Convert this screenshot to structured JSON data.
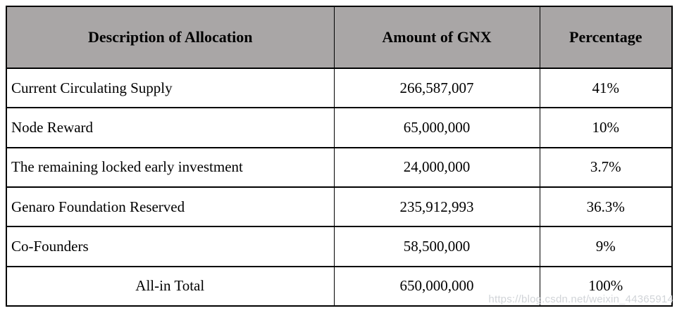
{
  "table": {
    "headers": [
      "Description of Allocation",
      "Amount of GNX",
      "Percentage"
    ],
    "rows": [
      {
        "description": "Current Circulating Supply",
        "amount": "266,587,007",
        "percentage": "41%"
      },
      {
        "description": "Node Reward",
        "amount": "65,000,000",
        "percentage": "10%"
      },
      {
        "description": "The remaining locked early investment",
        "amount": "24,000,000",
        "percentage": "3.7%"
      },
      {
        "description": "Genaro Foundation Reserved",
        "amount": "235,912,993",
        "percentage": "36.3%"
      },
      {
        "description": "Co-Founders",
        "amount": "58,500,000",
        "percentage": "9%"
      }
    ],
    "total": {
      "label": "All-in Total",
      "amount": "650,000,000",
      "percentage": "100%"
    }
  },
  "watermark": {
    "text": "https://blog.csdn.net/weixin_44365914"
  },
  "colors": {
    "header_bg": "#a9a6a6",
    "border": "#000000",
    "text": "#000000",
    "watermark_text": "#d2d5d9",
    "background": "#ffffff"
  }
}
